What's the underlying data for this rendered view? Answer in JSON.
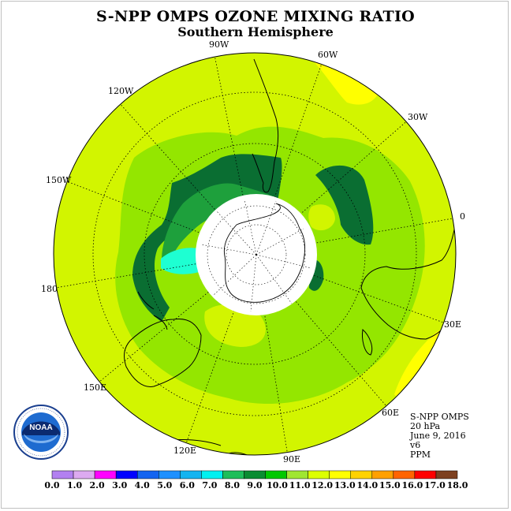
{
  "header": {
    "title": "S-NPP OMPS OZONE MIXING RATIO",
    "subtitle": "Southern Hemisphere"
  },
  "info": {
    "instrument": "S-NPP OMPS",
    "level": "20 hPa",
    "date": "June 9, 2016",
    "version": "v6",
    "units": "PPM"
  },
  "logo": {
    "text": "NOAA",
    "ring_text": "NATIONAL OCEANIC AND ATMOSPHERIC ADMINISTRATION · U.S. DEPARTMENT OF COMMERCE",
    "icon": "noaa-logo"
  },
  "map": {
    "projection": "south-polar-stereographic",
    "longitude_labels": [
      "90W",
      "60W",
      "120W",
      "30W",
      "150W",
      "0",
      "180",
      "30E",
      "150E",
      "60E",
      "120E",
      "90E"
    ],
    "polar_mask": "no data (polar night)"
  },
  "colorbar": {
    "tick_labels": [
      "0.0",
      "1.0",
      "2.0",
      "3.0",
      "4.0",
      "5.0",
      "6.0",
      "7.0",
      "8.0",
      "9.0",
      "10.0",
      "11.0",
      "12.0",
      "13.0",
      "14.0",
      "15.0",
      "16.0",
      "17.0",
      "18.0"
    ],
    "colors": [
      "#b280f0",
      "#dcaaf0",
      "#ff00ff",
      "#0000ff",
      "#1464f0",
      "#1e90ff",
      "#14b4f0",
      "#00f0f0",
      "#1ebe5a",
      "#0a8c32",
      "#00c800",
      "#a0e632",
      "#dcff00",
      "#ffff00",
      "#ffd200",
      "#ffa000",
      "#ff6400",
      "#ff0000",
      "#7d4020"
    ]
  },
  "field": {
    "colors": {
      "light_green": "#94e600",
      "yellow_green": "#d2f500",
      "yellow": "#ffff00",
      "medium_green": "#1ea03c",
      "dark_green": "#0a6e32",
      "cyan": "#1effd2"
    }
  }
}
